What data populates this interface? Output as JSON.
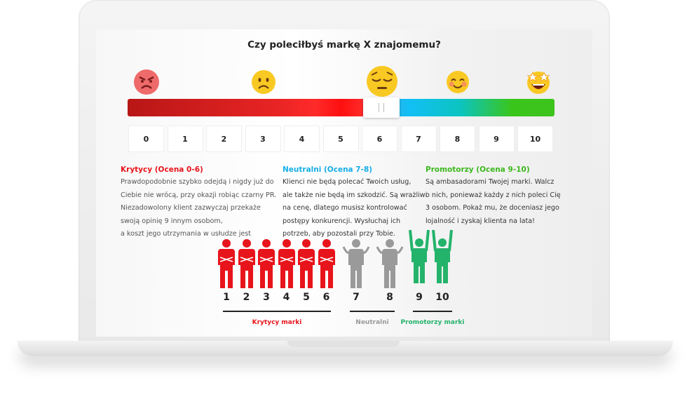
{
  "question": "Czy poleciłbyś markę X znajomemu?",
  "emojis": [
    "angry-face-icon",
    "frowning-face-icon",
    "pensive-face-icon",
    "smiling-face-icon",
    "star-struck-face-icon"
  ],
  "slider": {
    "value": 6,
    "min": 0,
    "max": 10
  },
  "scale": [
    "0",
    "1",
    "2",
    "3",
    "4",
    "5",
    "6",
    "7",
    "8",
    "9",
    "10"
  ],
  "groups": [
    {
      "heading": "Krytycy (Ocena 0-6)",
      "color": "#e8141b",
      "text": "Prawdopodobnie szybko odejdą i nigdy już do\nCiebie nie wrócą, przy okazji robiąc czarny PR.\nNiezadowolony klient zazwyczaj przekaże\nswoją opinię 9 innym osobom,\na koszt jego utrzymania w usłudze jest"
    },
    {
      "heading": "Neutralni (Ocena 7-8)",
      "color": "#14aee8",
      "text": "Klienci nie będą polecać Twoich usług,\nale także nie będą im szkodzić. Są wrażliwi\nna cenę, dlatego musisz kontrolować\npostępy konkurencji. Wysłuchaj ich\npotrzeb, aby pozostali przy Tobie."
    },
    {
      "heading": "Promotorzy (Ocena 9-10)",
      "color": "#3cb81c",
      "text": "Są ambasadorami Twojej marki. Walcz\no nich, ponieważ każdy z nich poleci Cię\n3 osobom. Pokaż mu, że doceniasz jego\nlojalność i zyskaj klienta na lata!"
    }
  ],
  "figures": [
    "1",
    "2",
    "3",
    "4",
    "5",
    "6",
    "7",
    "8",
    "9",
    "10"
  ],
  "figure_groups": [
    {
      "label": "Krytycy marki",
      "color": "#e8141b"
    },
    {
      "label": "Neutralni",
      "color": "#9a9a9a"
    },
    {
      "label": "Promotorzy marki",
      "color": "#24b36b"
    }
  ]
}
